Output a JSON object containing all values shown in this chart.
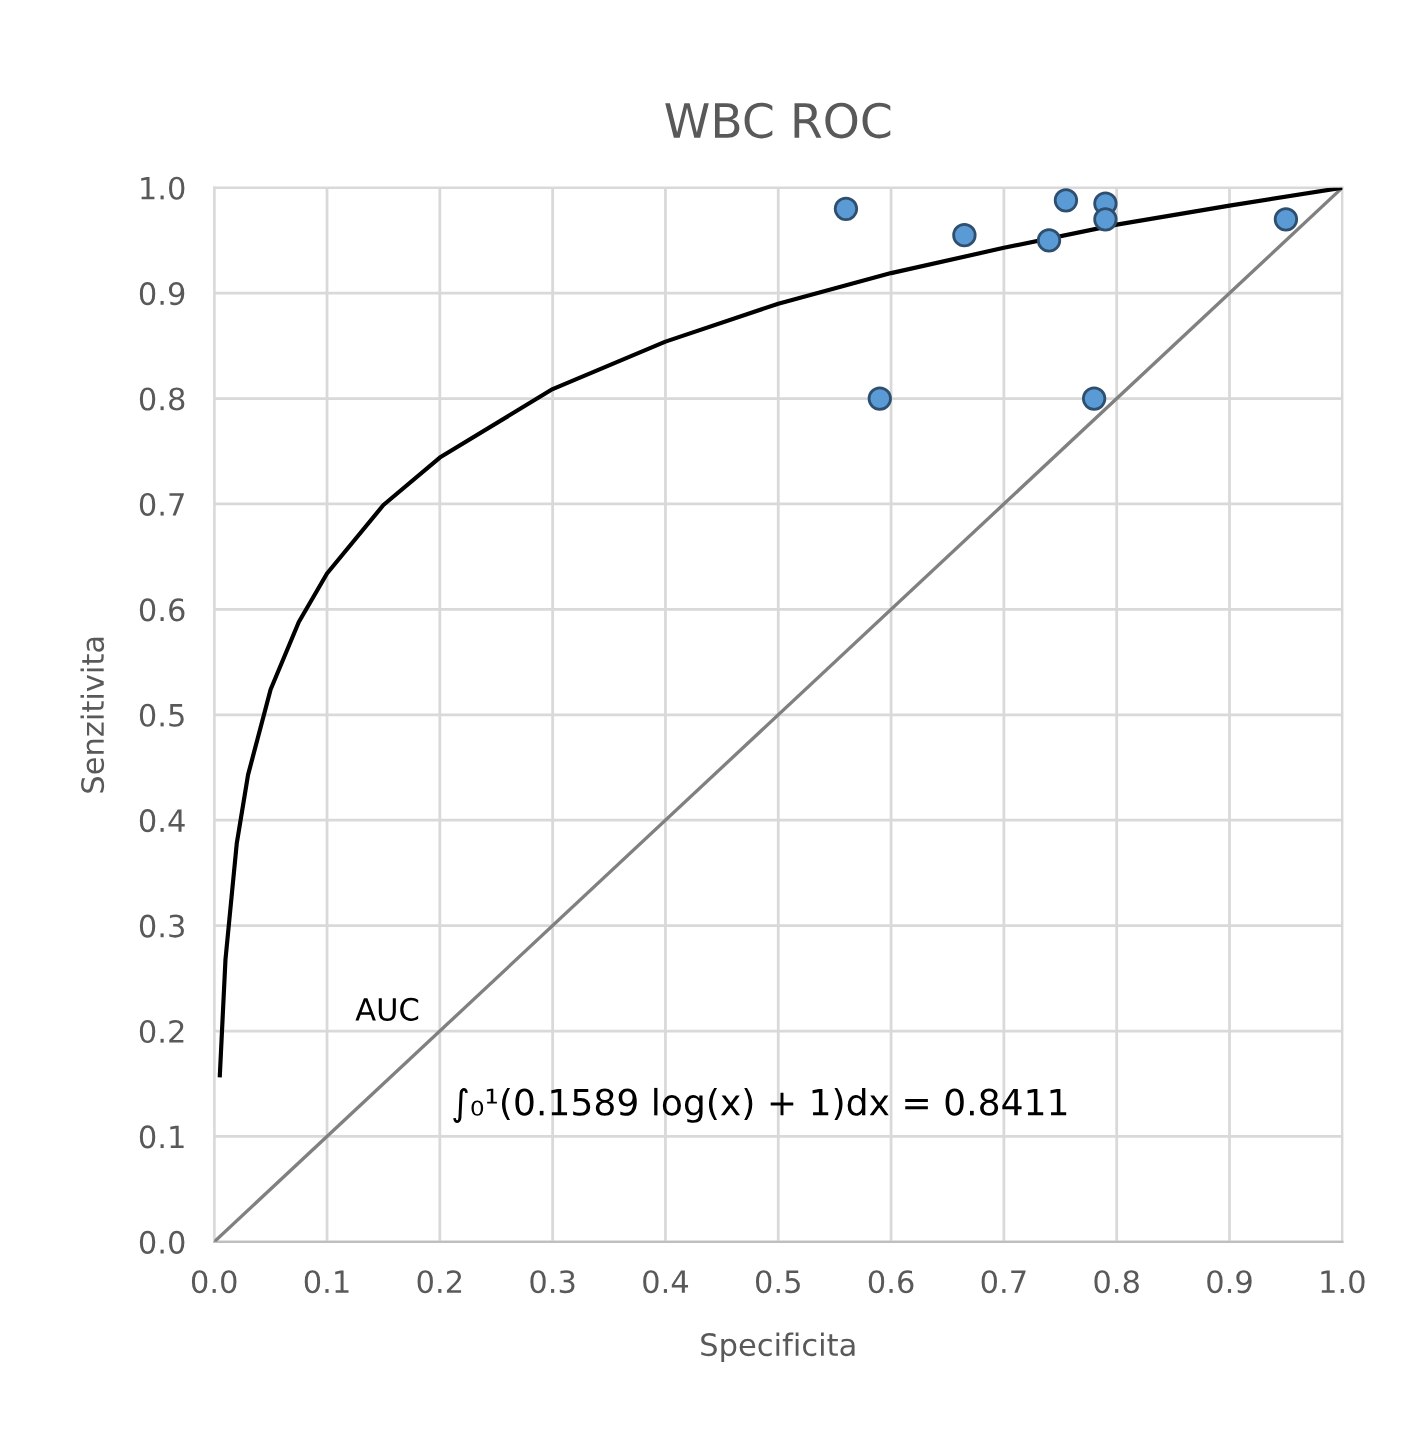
{
  "chart_data": {
    "type": "scatter",
    "title": "WBC ROC",
    "xlabel": "Specificita",
    "ylabel": "Senzitivita",
    "xlim": [
      0.0,
      1.0
    ],
    "ylim": [
      0.0,
      1.0
    ],
    "xticks": [
      {
        "value": 0,
        "label": "0.0"
      },
      0.1,
      0.2,
      0.3,
      0.4,
      0.5,
      0.6,
      0.7,
      0.8,
      0.9,
      {
        "value": 1,
        "label": "1.0"
      }
    ],
    "yticks": [
      {
        "value": 0,
        "label": "0.0"
      },
      0.1,
      0.2,
      0.3,
      0.4,
      0.5,
      0.6,
      0.7,
      0.8,
      0.9,
      {
        "value": 1,
        "label": "1.0"
      }
    ],
    "grid": true,
    "legend": false,
    "series": [
      {
        "type": "line",
        "color": "#808080",
        "marker": "none",
        "line_style": "solid",
        "x": [
          0.0,
          1.0
        ],
        "values": [
          0.0,
          1.0
        ]
      },
      {
        "type": "line",
        "color": "#000000",
        "marker": "none",
        "line_style": "solid",
        "x": [
          0.005,
          0.01,
          0.02,
          0.03,
          0.05,
          0.075,
          0.1,
          0.15,
          0.2,
          0.3,
          0.4,
          0.5,
          0.6,
          0.7,
          0.8,
          0.9,
          1.0
        ],
        "values": [
          0.158,
          0.268,
          0.378,
          0.443,
          0.524,
          0.588,
          0.634,
          0.699,
          0.744,
          0.809,
          0.854,
          0.89,
          0.919,
          0.943,
          0.965,
          0.983,
          1.0
        ]
      },
      {
        "color": "#5b9bd5",
        "marker": "circle",
        "x": [
          0.56,
          0.59,
          0.665,
          0.74,
          0.755,
          0.78,
          0.79,
          0.79,
          0.95
        ],
        "values": [
          0.98,
          0.8,
          0.955,
          0.95,
          0.988,
          0.8,
          0.985,
          0.97,
          0.97
        ]
      }
    ],
    "annotations": [
      "AUC",
      "∫₀¹(0.1589 log(x) + 1)dx = 0.8411"
    ]
  }
}
